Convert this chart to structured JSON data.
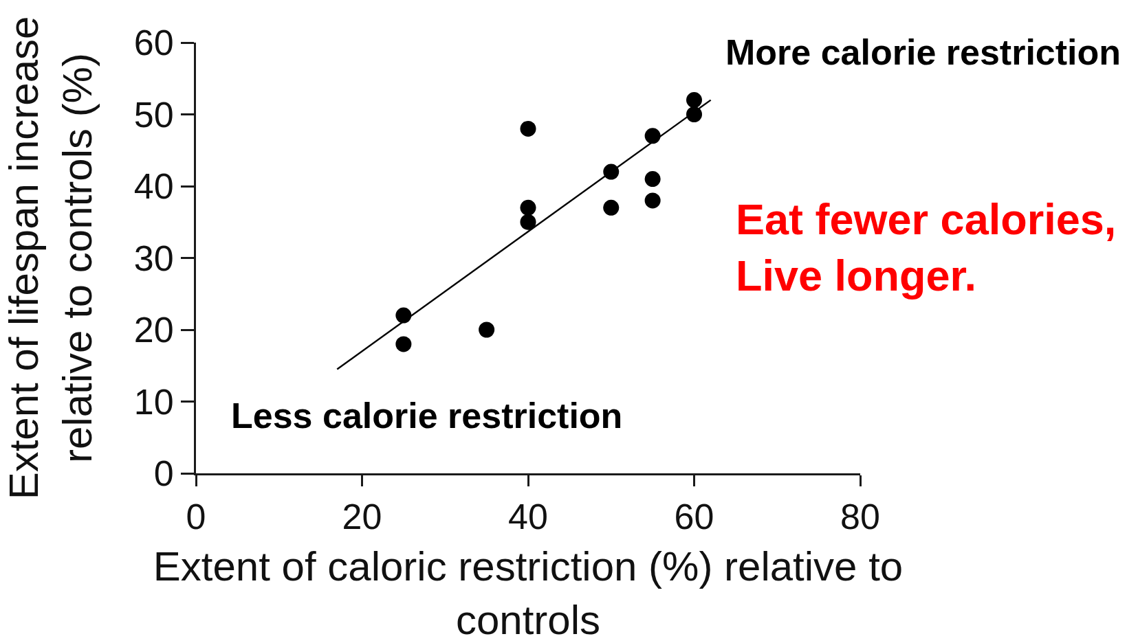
{
  "chart_data": {
    "type": "scatter",
    "xlabel": "Extent of caloric restriction (%) relative to\ncontrols",
    "ylabel": "Extent of lifespan increase\nrelative to controls (%)",
    "annotations": [
      "More calorie restriction",
      "Less calorie restriction",
      "Eat fewer calories,\nLive longer."
    ],
    "xlim": [
      0,
      80
    ],
    "xticks": [
      0,
      20,
      40,
      60,
      80
    ],
    "ylim": [
      0,
      60
    ],
    "yticks": [
      0,
      10,
      20,
      30,
      40,
      50,
      60
    ],
    "marker": "circle",
    "series": [
      {
        "color": "#000000",
        "x": [
          25,
          25,
          35,
          40,
          40,
          40,
          50,
          50,
          55,
          55,
          55,
          60,
          60
        ],
        "values": [
          22,
          18,
          20,
          48,
          37,
          35,
          42,
          37,
          47,
          41,
          38,
          52,
          50
        ]
      },
      {
        "type": "line",
        "color": "#000000",
        "marker": "none",
        "line_style": "solid",
        "x": [
          17,
          62
        ],
        "values": [
          14.5,
          52
        ]
      }
    ]
  }
}
